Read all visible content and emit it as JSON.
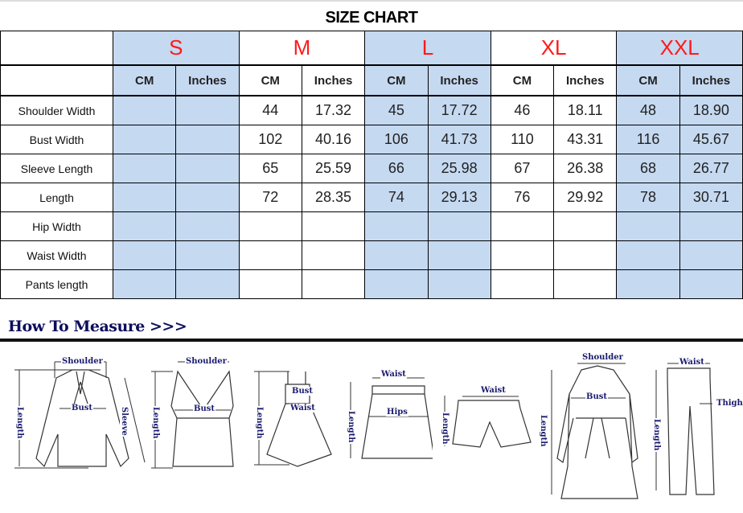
{
  "title": "SIZE CHART",
  "sizes": [
    "S",
    "M",
    "L",
    "XL",
    "XXL"
  ],
  "units": [
    "CM",
    "Inches"
  ],
  "rows": [
    {
      "label": "Shoulder Width",
      "values": [
        "",
        "",
        "44",
        "17.32",
        "45",
        "17.72",
        "46",
        "18.11",
        "48",
        "18.90"
      ]
    },
    {
      "label": "Bust Width",
      "values": [
        "",
        "",
        "102",
        "40.16",
        "106",
        "41.73",
        "110",
        "43.31",
        "116",
        "45.67"
      ]
    },
    {
      "label": "Sleeve Length",
      "values": [
        "",
        "",
        "65",
        "25.59",
        "66",
        "25.98",
        "67",
        "26.38",
        "68",
        "26.77"
      ]
    },
    {
      "label": "Length",
      "values": [
        "",
        "",
        "72",
        "28.35",
        "74",
        "29.13",
        "76",
        "29.92",
        "78",
        "30.71"
      ]
    },
    {
      "label": "Hip Width",
      "values": [
        "",
        "",
        "",
        "",
        "",
        "",
        "",
        "",
        "",
        ""
      ]
    },
    {
      "label": "Waist Width",
      "values": [
        "",
        "",
        "",
        "",
        "",
        "",
        "",
        "",
        "",
        ""
      ]
    },
    {
      "label": "Pants length",
      "values": [
        "",
        "",
        "",
        "",
        "",
        "",
        "",
        "",
        "",
        ""
      ]
    }
  ],
  "colors": {
    "size_text": "#ff1a1a",
    "shaded_column": "#c5d9f1",
    "heading": "#0d0d5e"
  },
  "how_to_measure": {
    "heading": "How To Measure >>>",
    "figures": [
      {
        "garment": "blouse",
        "labels": [
          "Shoulder",
          "Bust",
          "Sleeve",
          "Length"
        ]
      },
      {
        "garment": "tank-top",
        "labels": [
          "Shoulder",
          "Bust",
          "Length"
        ]
      },
      {
        "garment": "dress",
        "labels": [
          "Bust",
          "Waist",
          "Length"
        ]
      },
      {
        "garment": "skirt",
        "labels": [
          "Waist",
          "Hips",
          "Length"
        ]
      },
      {
        "garment": "shorts",
        "labels": [
          "Waist",
          "Length"
        ]
      },
      {
        "garment": "coat",
        "labels": [
          "Shoulder",
          "Bust",
          "Length"
        ]
      },
      {
        "garment": "pants",
        "labels": [
          "Waist",
          "Thigh",
          "Length"
        ]
      }
    ]
  }
}
